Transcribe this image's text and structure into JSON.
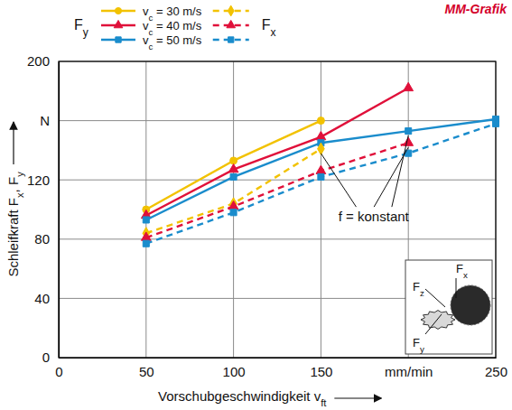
{
  "chart_data": {
    "type": "line",
    "credit": "MM-Grafik",
    "legend_titles": [
      "Fy",
      "Fx"
    ],
    "x_label": "Vorschubgeschwindigkeit vft",
    "y_label": "Schleifkraft Fx, Fy",
    "x": [
      50,
      100,
      150,
      200,
      250
    ],
    "xlim": [
      0,
      250
    ],
    "ylim": [
      0,
      200
    ],
    "xticks": [
      0,
      50,
      100,
      150,
      {
        "value": 200,
        "label": "mm/min"
      },
      250
    ],
    "yticks": [
      0,
      40,
      80,
      120,
      {
        "value": 160,
        "label": "N"
      },
      200
    ],
    "grid": true,
    "legend": "top",
    "series": [
      {
        "name": "vc = 30 m/s",
        "color": "#f2c200",
        "marker": "circle",
        "line_style": "solid",
        "values": [
          100,
          133,
          160,
          null,
          null
        ]
      },
      {
        "name": "vc = 40 m/s",
        "color": "#e0103a",
        "marker": "triangle",
        "line_style": "solid",
        "values": [
          96,
          127,
          149,
          182,
          null
        ]
      },
      {
        "name": "vc = 50 m/s",
        "color": "#1a8ccc",
        "marker": "square",
        "line_style": "solid",
        "values": [
          93,
          122,
          145,
          153,
          161
        ]
      },
      {
        "color": "#f2c200",
        "marker": "diamond",
        "line_style": "dashed",
        "values": [
          84,
          104,
          141,
          null,
          null
        ]
      },
      {
        "color": "#e0103a",
        "marker": "triangle",
        "line_style": "dashed",
        "values": [
          81,
          102,
          126,
          145,
          null
        ]
      },
      {
        "color": "#1a8ccc",
        "marker": "square",
        "line_style": "dashed",
        "values": [
          77,
          98,
          122,
          138,
          158
        ]
      }
    ],
    "annotations": [
      "f = konstant"
    ],
    "inset_labels": [
      "Fx",
      "Fz",
      "Fy"
    ]
  }
}
